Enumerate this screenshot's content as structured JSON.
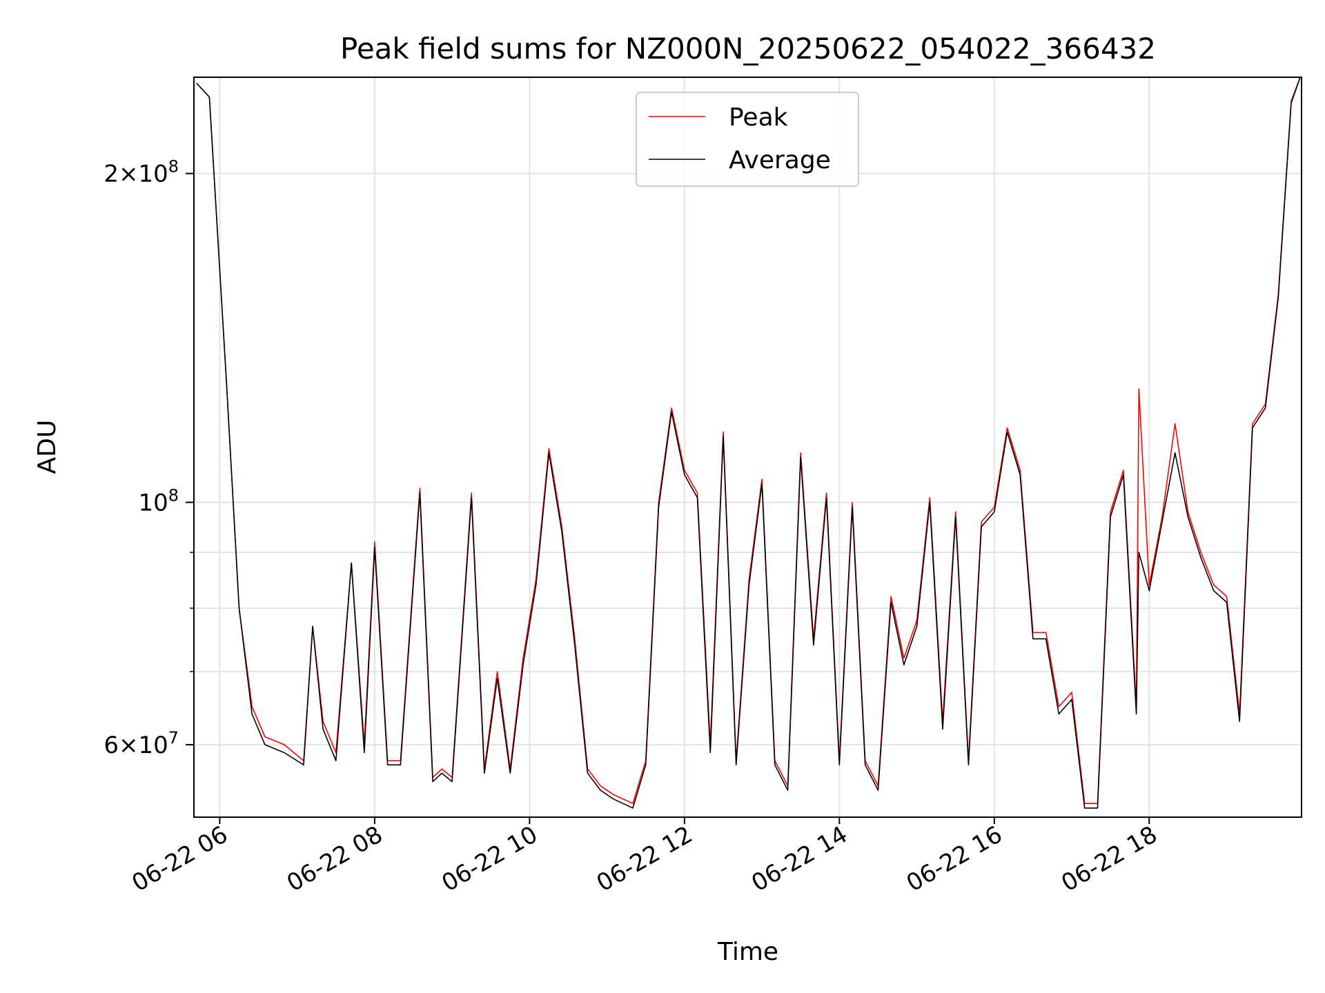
{
  "chart_data": {
    "type": "line",
    "title": "Peak field sums for NZ000N_20250622_054022_366432",
    "xlabel": "Time",
    "ylabel": "ADU",
    "yscale": "log",
    "ylim": [
      51500000,
      245000000
    ],
    "xlim": [
      "2025-06-22 05:40",
      "2025-06-22 19:58"
    ],
    "grid": true,
    "legend": "upper center",
    "x_tick_labels": [
      "06-22 06",
      "06-22 08",
      "06-22 10",
      "06-22 12",
      "06-22 14",
      "06-22 16",
      "06-22 18"
    ],
    "y_tick_labels": [
      {
        "value": 60000000,
        "base": "6",
        "exp": "7"
      },
      {
        "value": 100000000,
        "base": "",
        "exp": "8"
      },
      {
        "value": 200000000,
        "base": "2",
        "exp": "8"
      }
    ],
    "series": [
      {
        "name": "Peak",
        "color": "#ff0000",
        "x": [
          "2025-06-22 05:42",
          "2025-06-22 05:52",
          "2025-06-22 06:05",
          "2025-06-22 06:15",
          "2025-06-22 06:25",
          "2025-06-22 06:35",
          "2025-06-22 06:50",
          "2025-06-22 07:05",
          "2025-06-22 07:12",
          "2025-06-22 07:20",
          "2025-06-22 07:30",
          "2025-06-22 07:42",
          "2025-06-22 07:52",
          "2025-06-22 08:00",
          "2025-06-22 08:10",
          "2025-06-22 08:20",
          "2025-06-22 08:35",
          "2025-06-22 08:45",
          "2025-06-22 08:52",
          "2025-06-22 09:00",
          "2025-06-22 09:15",
          "2025-06-22 09:25",
          "2025-06-22 09:35",
          "2025-06-22 09:45",
          "2025-06-22 09:55",
          "2025-06-22 10:05",
          "2025-06-22 10:15",
          "2025-06-22 10:25",
          "2025-06-22 10:35",
          "2025-06-22 10:45",
          "2025-06-22 10:55",
          "2025-06-22 11:05",
          "2025-06-22 11:20",
          "2025-06-22 11:30",
          "2025-06-22 11:40",
          "2025-06-22 11:50",
          "2025-06-22 12:00",
          "2025-06-22 12:10",
          "2025-06-22 12:20",
          "2025-06-22 12:30",
          "2025-06-22 12:40",
          "2025-06-22 12:50",
          "2025-06-22 13:00",
          "2025-06-22 13:10",
          "2025-06-22 13:20",
          "2025-06-22 13:30",
          "2025-06-22 13:40",
          "2025-06-22 13:50",
          "2025-06-22 14:00",
          "2025-06-22 14:10",
          "2025-06-22 14:20",
          "2025-06-22 14:30",
          "2025-06-22 14:40",
          "2025-06-22 14:50",
          "2025-06-22 15:00",
          "2025-06-22 15:10",
          "2025-06-22 15:20",
          "2025-06-22 15:30",
          "2025-06-22 15:40",
          "2025-06-22 15:50",
          "2025-06-22 16:00",
          "2025-06-22 16:10",
          "2025-06-22 16:20",
          "2025-06-22 16:30",
          "2025-06-22 16:40",
          "2025-06-22 16:50",
          "2025-06-22 17:00",
          "2025-06-22 17:10",
          "2025-06-22 17:20",
          "2025-06-22 17:30",
          "2025-06-22 17:40",
          "2025-06-22 17:50",
          "2025-06-22 17:52",
          "2025-06-22 18:00",
          "2025-06-22 18:10",
          "2025-06-22 18:20",
          "2025-06-22 18:30",
          "2025-06-22 18:40",
          "2025-06-22 18:50",
          "2025-06-22 19:00",
          "2025-06-22 19:10",
          "2025-06-22 19:20",
          "2025-06-22 19:30",
          "2025-06-22 19:40",
          "2025-06-22 19:50",
          "2025-06-22 19:57"
        ],
        "y": [
          242000000,
          235000000,
          130000000,
          80000000,
          65000000,
          61000000,
          60000000,
          58000000,
          77000000,
          63000000,
          59000000,
          88000000,
          60000000,
          92000000,
          58000000,
          58000000,
          103000000,
          56000000,
          57000000,
          56000000,
          102000000,
          57000000,
          70000000,
          57000000,
          72000000,
          85000000,
          112000000,
          95000000,
          75000000,
          57000000,
          55000000,
          54000000,
          53000000,
          58000000,
          100000000,
          122000000,
          107000000,
          102000000,
          60000000,
          116000000,
          58000000,
          85000000,
          105000000,
          58000000,
          55000000,
          111000000,
          75000000,
          102000000,
          58000000,
          100000000,
          58000000,
          55000000,
          82000000,
          72000000,
          78000000,
          101000000,
          63000000,
          98000000,
          58000000,
          96000000,
          99000000,
          117000000,
          107000000,
          76000000,
          76000000,
          65000000,
          67000000,
          53000000,
          53000000,
          98000000,
          107000000,
          65000000,
          127000000,
          84000000,
          97000000,
          118000000,
          98000000,
          90000000,
          84000000,
          82000000,
          64000000,
          118000000,
          123000000,
          155000000,
          233000000,
          245000000
        ]
      },
      {
        "name": "Average",
        "color": "#000000",
        "x": [
          "2025-06-22 05:42",
          "2025-06-22 05:52",
          "2025-06-22 06:05",
          "2025-06-22 06:15",
          "2025-06-22 06:25",
          "2025-06-22 06:35",
          "2025-06-22 06:50",
          "2025-06-22 07:05",
          "2025-06-22 07:12",
          "2025-06-22 07:20",
          "2025-06-22 07:30",
          "2025-06-22 07:42",
          "2025-06-22 07:52",
          "2025-06-22 08:00",
          "2025-06-22 08:10",
          "2025-06-22 08:20",
          "2025-06-22 08:35",
          "2025-06-22 08:45",
          "2025-06-22 08:52",
          "2025-06-22 09:00",
          "2025-06-22 09:15",
          "2025-06-22 09:25",
          "2025-06-22 09:35",
          "2025-06-22 09:45",
          "2025-06-22 09:55",
          "2025-06-22 10:05",
          "2025-06-22 10:15",
          "2025-06-22 10:25",
          "2025-06-22 10:35",
          "2025-06-22 10:45",
          "2025-06-22 10:55",
          "2025-06-22 11:05",
          "2025-06-22 11:20",
          "2025-06-22 11:30",
          "2025-06-22 11:40",
          "2025-06-22 11:50",
          "2025-06-22 12:00",
          "2025-06-22 12:10",
          "2025-06-22 12:20",
          "2025-06-22 12:30",
          "2025-06-22 12:40",
          "2025-06-22 12:50",
          "2025-06-22 13:00",
          "2025-06-22 13:10",
          "2025-06-22 13:20",
          "2025-06-22 13:30",
          "2025-06-22 13:40",
          "2025-06-22 13:50",
          "2025-06-22 14:00",
          "2025-06-22 14:10",
          "2025-06-22 14:20",
          "2025-06-22 14:30",
          "2025-06-22 14:40",
          "2025-06-22 14:50",
          "2025-06-22 15:00",
          "2025-06-22 15:10",
          "2025-06-22 15:20",
          "2025-06-22 15:30",
          "2025-06-22 15:40",
          "2025-06-22 15:50",
          "2025-06-22 16:00",
          "2025-06-22 16:10",
          "2025-06-22 16:20",
          "2025-06-22 16:30",
          "2025-06-22 16:40",
          "2025-06-22 16:50",
          "2025-06-22 17:00",
          "2025-06-22 17:10",
          "2025-06-22 17:20",
          "2025-06-22 17:30",
          "2025-06-22 17:40",
          "2025-06-22 17:50",
          "2025-06-22 17:52",
          "2025-06-22 18:00",
          "2025-06-22 18:10",
          "2025-06-22 18:20",
          "2025-06-22 18:30",
          "2025-06-22 18:40",
          "2025-06-22 18:50",
          "2025-06-22 19:00",
          "2025-06-22 19:10",
          "2025-06-22 19:20",
          "2025-06-22 19:30",
          "2025-06-22 19:40",
          "2025-06-22 19:50",
          "2025-06-22 19:57"
        ],
        "y": [
          242000000,
          235000000,
          130000000,
          80000000,
          64000000,
          60000000,
          59000000,
          57500000,
          77000000,
          62000000,
          58000000,
          88000000,
          59000000,
          91000000,
          57500000,
          57500000,
          102000000,
          55500000,
          56500000,
          55500000,
          101000000,
          56500000,
          69000000,
          56500000,
          71000000,
          84000000,
          111000000,
          94000000,
          74000000,
          56500000,
          54500000,
          53500000,
          52500000,
          57500000,
          99000000,
          121000000,
          106000000,
          101000000,
          59000000,
          115000000,
          57500000,
          84000000,
          104000000,
          57500000,
          54500000,
          110000000,
          74000000,
          101000000,
          57500000,
          99000000,
          57500000,
          54500000,
          81000000,
          71000000,
          77000000,
          100000000,
          62000000,
          97000000,
          57500000,
          95000000,
          98000000,
          116000000,
          106000000,
          75000000,
          75000000,
          64000000,
          66000000,
          52500000,
          52500000,
          97000000,
          106000000,
          64000000,
          90000000,
          83000000,
          96000000,
          111000000,
          97000000,
          89000000,
          83000000,
          81000000,
          63000000,
          117000000,
          122000000,
          154000000,
          232000000,
          245000000
        ]
      }
    ]
  }
}
